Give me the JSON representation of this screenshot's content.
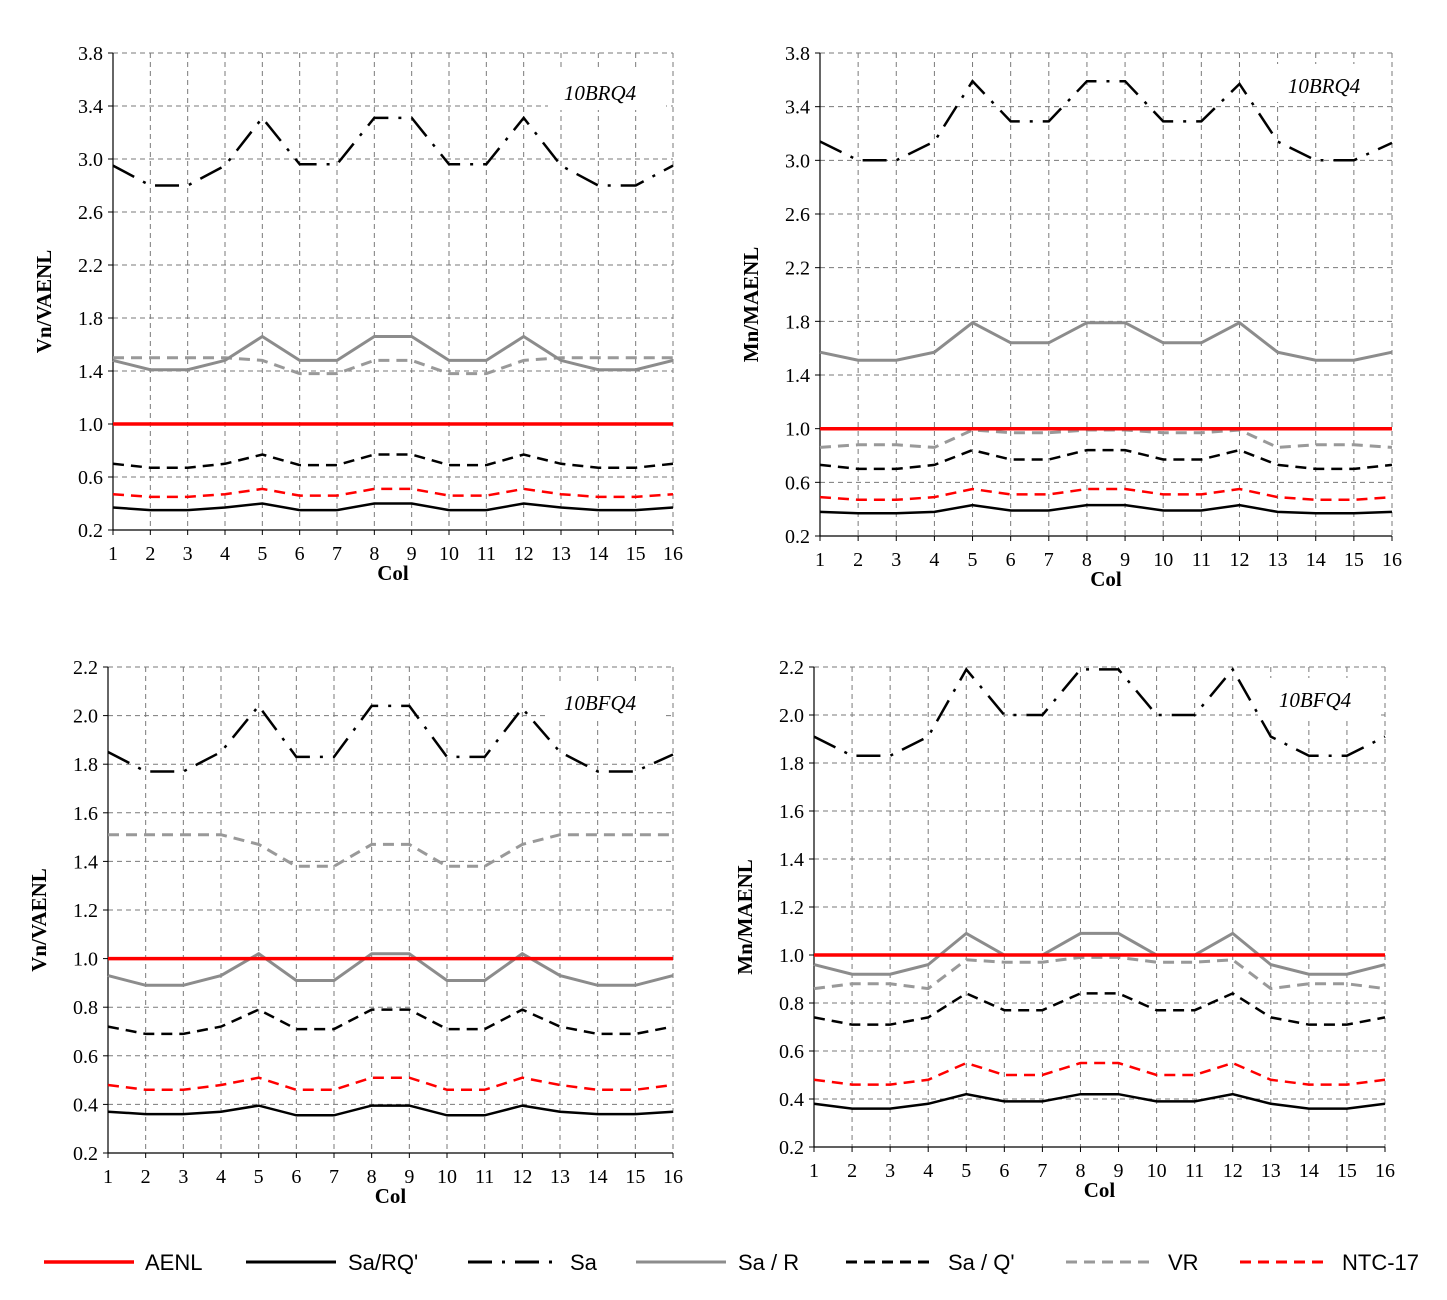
{
  "legend": [
    {
      "key": "AENL",
      "label": "AENL"
    },
    {
      "key": "SaRQ",
      "label": "Sa/RQ'"
    },
    {
      "key": "Sa",
      "label": "Sa"
    },
    {
      "key": "SaR",
      "label": "Sa / R"
    },
    {
      "key": "SaQ",
      "label": "Sa / Q'"
    },
    {
      "key": "VR",
      "label": "VR"
    },
    {
      "key": "NTC",
      "label": "NTC-17"
    }
  ],
  "series_styles": {
    "AENL": {
      "color": "#ff0000",
      "dash": "solid",
      "width": 3.5
    },
    "SaRQ": {
      "color": "#000000",
      "dash": "solid",
      "width": 2.5
    },
    "Sa": {
      "color": "#000000",
      "dash": "dashdot",
      "width": 2.5
    },
    "SaR": {
      "color": "#8c8c8c",
      "dash": "solid",
      "width": 3
    },
    "SaQ": {
      "color": "#000000",
      "dash": "dashed",
      "width": 2.5
    },
    "VR": {
      "color": "#999999",
      "dash": "dashed",
      "width": 3
    },
    "NTC": {
      "color": "#ff0000",
      "dash": "dashed",
      "width": 2.5
    }
  },
  "chart_data": [
    {
      "type": "line",
      "panel": "top-left",
      "title": "10BRQ4",
      "xlabel": "Col",
      "ylabel": "Vn/VAENL",
      "x": [
        1,
        2,
        3,
        4,
        5,
        6,
        7,
        8,
        9,
        10,
        11,
        12,
        13,
        14,
        15,
        16
      ],
      "ylim": [
        0.2,
        3.8
      ],
      "yticks": [
        0.2,
        0.6,
        1.0,
        1.4,
        1.8,
        2.2,
        2.6,
        3.0,
        3.4,
        3.8
      ],
      "grid": true,
      "series": [
        {
          "key": "AENL",
          "name": "AENL",
          "values": [
            1,
            1,
            1,
            1,
            1,
            1,
            1,
            1,
            1,
            1,
            1,
            1,
            1,
            1,
            1,
            1
          ]
        },
        {
          "key": "SaRQ",
          "name": "Sa/RQ'",
          "values": [
            0.37,
            0.35,
            0.35,
            0.37,
            0.4,
            0.35,
            0.35,
            0.4,
            0.4,
            0.35,
            0.35,
            0.4,
            0.37,
            0.35,
            0.35,
            0.37
          ]
        },
        {
          "key": "Sa",
          "name": "Sa",
          "values": [
            2.95,
            2.8,
            2.8,
            2.95,
            3.31,
            2.96,
            2.96,
            3.31,
            3.31,
            2.96,
            2.96,
            3.31,
            2.95,
            2.8,
            2.8,
            2.95
          ]
        },
        {
          "key": "SaR",
          "name": "Sa / R",
          "values": [
            1.48,
            1.41,
            1.41,
            1.48,
            1.66,
            1.48,
            1.48,
            1.66,
            1.66,
            1.48,
            1.48,
            1.66,
            1.48,
            1.41,
            1.41,
            1.48
          ]
        },
        {
          "key": "SaQ",
          "name": "Sa / Q'",
          "values": [
            0.7,
            0.67,
            0.67,
            0.7,
            0.77,
            0.69,
            0.69,
            0.77,
            0.77,
            0.69,
            0.69,
            0.77,
            0.7,
            0.67,
            0.67,
            0.7
          ]
        },
        {
          "key": "VR",
          "name": "VR",
          "values": [
            1.5,
            1.5,
            1.5,
            1.5,
            1.48,
            1.38,
            1.38,
            1.48,
            1.48,
            1.38,
            1.38,
            1.48,
            1.5,
            1.5,
            1.5,
            1.5
          ]
        },
        {
          "key": "NTC",
          "name": "NTC-17",
          "values": [
            0.47,
            0.45,
            0.45,
            0.47,
            0.51,
            0.46,
            0.46,
            0.51,
            0.51,
            0.46,
            0.46,
            0.51,
            0.47,
            0.45,
            0.45,
            0.47
          ]
        }
      ]
    },
    {
      "type": "line",
      "panel": "top-right",
      "title": "10BRQ4",
      "xlabel": "Col",
      "ylabel": "Mn/MAENL",
      "x": [
        1,
        2,
        3,
        4,
        5,
        6,
        7,
        8,
        9,
        10,
        11,
        12,
        13,
        14,
        15,
        16
      ],
      "ylim": [
        0.2,
        3.8
      ],
      "yticks": [
        0.2,
        0.6,
        1.0,
        1.4,
        1.8,
        2.2,
        2.6,
        3.0,
        3.4,
        3.8
      ],
      "grid": true,
      "series": [
        {
          "key": "AENL",
          "name": "AENL",
          "values": [
            1,
            1,
            1,
            1,
            1,
            1,
            1,
            1,
            1,
            1,
            1,
            1,
            1,
            1,
            1,
            1
          ]
        },
        {
          "key": "SaRQ",
          "name": "Sa/RQ'",
          "values": [
            0.38,
            0.37,
            0.37,
            0.38,
            0.43,
            0.39,
            0.39,
            0.43,
            0.43,
            0.39,
            0.39,
            0.43,
            0.38,
            0.37,
            0.37,
            0.38
          ]
        },
        {
          "key": "Sa",
          "name": "Sa",
          "values": [
            3.14,
            3.0,
            3.0,
            3.14,
            3.59,
            3.29,
            3.29,
            3.59,
            3.59,
            3.29,
            3.29,
            3.57,
            3.14,
            3.0,
            3.0,
            3.13
          ]
        },
        {
          "key": "SaR",
          "name": "Sa / R",
          "values": [
            1.57,
            1.51,
            1.51,
            1.57,
            1.79,
            1.64,
            1.64,
            1.79,
            1.79,
            1.64,
            1.64,
            1.79,
            1.57,
            1.51,
            1.51,
            1.57
          ]
        },
        {
          "key": "SaQ",
          "name": "Sa / Q'",
          "values": [
            0.73,
            0.7,
            0.7,
            0.73,
            0.84,
            0.77,
            0.77,
            0.84,
            0.84,
            0.77,
            0.77,
            0.84,
            0.73,
            0.7,
            0.7,
            0.73
          ]
        },
        {
          "key": "VR",
          "name": "VR",
          "values": [
            0.86,
            0.88,
            0.88,
            0.86,
            0.99,
            0.97,
            0.97,
            0.99,
            0.99,
            0.97,
            0.97,
            0.99,
            0.86,
            0.88,
            0.88,
            0.86
          ]
        },
        {
          "key": "NTC",
          "name": "NTC-17",
          "values": [
            0.49,
            0.47,
            0.47,
            0.49,
            0.55,
            0.51,
            0.51,
            0.55,
            0.55,
            0.51,
            0.51,
            0.55,
            0.49,
            0.47,
            0.47,
            0.49
          ]
        }
      ]
    },
    {
      "type": "line",
      "panel": "bottom-left",
      "title": "10BFQ4",
      "xlabel": "Col",
      "ylabel": "Vn/VAENL",
      "x": [
        1,
        2,
        3,
        4,
        5,
        6,
        7,
        8,
        9,
        10,
        11,
        12,
        13,
        14,
        15,
        16
      ],
      "ylim": [
        0.2,
        2.2
      ],
      "yticks": [
        0.2,
        0.4,
        0.6,
        0.8,
        1.0,
        1.2,
        1.4,
        1.6,
        1.8,
        2.0,
        2.2
      ],
      "grid": true,
      "series": [
        {
          "key": "AENL",
          "name": "AENL",
          "values": [
            1,
            1,
            1,
            1,
            1,
            1,
            1,
            1,
            1,
            1,
            1,
            1,
            1,
            1,
            1,
            1
          ]
        },
        {
          "key": "SaRQ",
          "name": "Sa/RQ'",
          "values": [
            0.37,
            0.36,
            0.36,
            0.37,
            0.395,
            0.355,
            0.355,
            0.395,
            0.395,
            0.355,
            0.355,
            0.395,
            0.37,
            0.36,
            0.36,
            0.37
          ]
        },
        {
          "key": "Sa",
          "name": "Sa",
          "values": [
            1.85,
            1.77,
            1.77,
            1.85,
            2.04,
            1.83,
            1.83,
            2.04,
            2.04,
            1.83,
            1.83,
            2.03,
            1.85,
            1.77,
            1.77,
            1.84
          ]
        },
        {
          "key": "SaR",
          "name": "Sa / R",
          "values": [
            0.93,
            0.89,
            0.89,
            0.93,
            1.02,
            0.91,
            0.91,
            1.02,
            1.02,
            0.91,
            0.91,
            1.02,
            0.93,
            0.89,
            0.89,
            0.93
          ]
        },
        {
          "key": "SaQ",
          "name": "Sa / Q'",
          "values": [
            0.72,
            0.69,
            0.69,
            0.72,
            0.79,
            0.71,
            0.71,
            0.79,
            0.79,
            0.71,
            0.71,
            0.79,
            0.72,
            0.69,
            0.69,
            0.72
          ]
        },
        {
          "key": "VR",
          "name": "VR",
          "values": [
            1.51,
            1.51,
            1.51,
            1.51,
            1.47,
            1.38,
            1.38,
            1.47,
            1.47,
            1.38,
            1.38,
            1.47,
            1.51,
            1.51,
            1.51,
            1.51
          ]
        },
        {
          "key": "NTC",
          "name": "NTC-17",
          "values": [
            0.48,
            0.46,
            0.46,
            0.48,
            0.51,
            0.46,
            0.46,
            0.51,
            0.51,
            0.46,
            0.46,
            0.51,
            0.48,
            0.46,
            0.46,
            0.48
          ]
        }
      ]
    },
    {
      "type": "line",
      "panel": "bottom-right",
      "title": "10BFQ4",
      "xlabel": "Col",
      "ylabel": "Mn/MAENL",
      "x": [
        1,
        2,
        3,
        4,
        5,
        6,
        7,
        8,
        9,
        10,
        11,
        12,
        13,
        14,
        15,
        16
      ],
      "ylim": [
        0.2,
        2.2
      ],
      "yticks": [
        0.2,
        0.4,
        0.6,
        0.8,
        1.0,
        1.2,
        1.4,
        1.6,
        1.8,
        2.0,
        2.2
      ],
      "grid": true,
      "series": [
        {
          "key": "AENL",
          "name": "AENL",
          "values": [
            1,
            1,
            1,
            1,
            1,
            1,
            1,
            1,
            1,
            1,
            1,
            1,
            1,
            1,
            1,
            1
          ]
        },
        {
          "key": "SaRQ",
          "name": "Sa/RQ'",
          "values": [
            0.38,
            0.36,
            0.36,
            0.38,
            0.42,
            0.39,
            0.39,
            0.42,
            0.42,
            0.39,
            0.39,
            0.42,
            0.38,
            0.36,
            0.36,
            0.38
          ]
        },
        {
          "key": "Sa",
          "name": "Sa",
          "values": [
            1.91,
            1.83,
            1.83,
            1.91,
            2.19,
            2.0,
            2.0,
            2.19,
            2.19,
            2.0,
            2.0,
            2.19,
            1.91,
            1.83,
            1.83,
            1.91
          ]
        },
        {
          "key": "SaR",
          "name": "Sa / R",
          "values": [
            0.96,
            0.92,
            0.92,
            0.96,
            1.09,
            1.0,
            1.0,
            1.09,
            1.09,
            1.0,
            1.0,
            1.09,
            0.96,
            0.92,
            0.92,
            0.96
          ]
        },
        {
          "key": "SaQ",
          "name": "Sa / Q'",
          "values": [
            0.74,
            0.71,
            0.71,
            0.74,
            0.84,
            0.77,
            0.77,
            0.84,
            0.84,
            0.77,
            0.77,
            0.84,
            0.74,
            0.71,
            0.71,
            0.74
          ]
        },
        {
          "key": "VR",
          "name": "VR",
          "values": [
            0.86,
            0.88,
            0.88,
            0.86,
            0.98,
            0.97,
            0.97,
            0.99,
            0.99,
            0.97,
            0.97,
            0.98,
            0.86,
            0.88,
            0.88,
            0.86
          ]
        },
        {
          "key": "NTC",
          "name": "NTC-17",
          "values": [
            0.48,
            0.46,
            0.46,
            0.48,
            0.55,
            0.5,
            0.5,
            0.55,
            0.55,
            0.5,
            0.5,
            0.55,
            0.48,
            0.46,
            0.46,
            0.48
          ]
        }
      ]
    }
  ]
}
